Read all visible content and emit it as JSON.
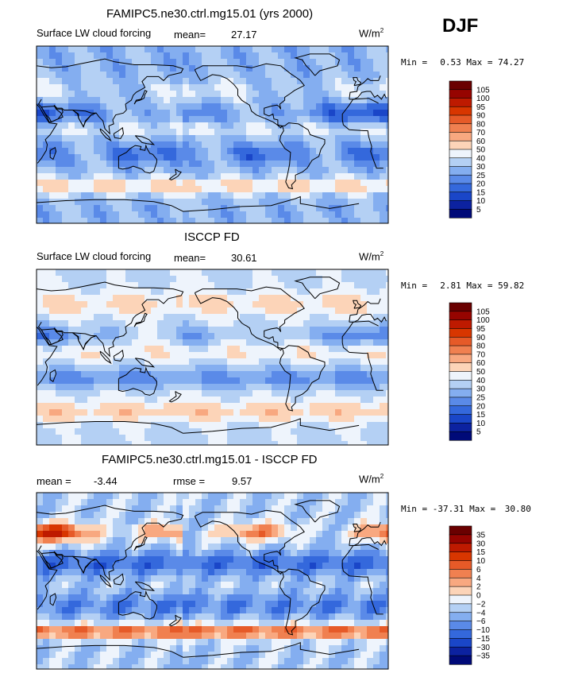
{
  "season": "DJF",
  "units_base": "W/m",
  "units_exp": "2",
  "min_label": "Min =",
  "max_label": "Max =",
  "panels": [
    {
      "title": "FAMIPC5.ne30.ctrl.mg15.01 (yrs 2000)",
      "subtitle": "Surface LW cloud forcing",
      "mean_label": "mean=",
      "mean": "27.17",
      "min": "0.53",
      "max": "74.27",
      "mode": "abs"
    },
    {
      "title": "ISCCP FD",
      "subtitle": "Surface LW cloud forcing",
      "mean_label": "mean=",
      "mean": "30.61",
      "min": "2.81",
      "max": "59.82",
      "mode": "obs"
    },
    {
      "title": "FAMIPC5.ne30.ctrl.mg15.01 - ISCCP FD",
      "mean_label": "mean =",
      "mean": "-3.44",
      "rmse_label": "rmse =",
      "rmse": "9.57",
      "min": "-37.31",
      "max": "30.80",
      "mode": "diff"
    }
  ],
  "chart_data": [
    {
      "type": "heatmap",
      "title": "FAMIPC5.ne30.ctrl.mg15.01 (yrs 2000)",
      "subtitle": "Surface LW cloud forcing",
      "units": "W/m^2",
      "mean": 27.17,
      "min": 0.53,
      "max": 74.27,
      "colorbar_levels": [
        "105",
        "100",
        "95",
        "90",
        "80",
        "70",
        "60",
        "50",
        "40",
        "30",
        "25",
        "20",
        "15",
        "10",
        "5"
      ],
      "colorbar_colors": [
        "#6a0000",
        "#960400",
        "#be1a00",
        "#d83600",
        "#e65a28",
        "#f08050",
        "#f8a880",
        "#fcd4b8",
        "#eef4fc",
        "#b4d0f4",
        "#84aef0",
        "#5a8ae8",
        "#3468dc",
        "#1a46c8",
        "#0c22a0",
        "#000a78"
      ]
    },
    {
      "type": "heatmap",
      "title": "ISCCP FD",
      "subtitle": "Surface LW cloud forcing",
      "units": "W/m^2",
      "mean": 30.61,
      "min": 2.81,
      "max": 59.82,
      "colorbar_levels": [
        "105",
        "100",
        "95",
        "90",
        "80",
        "70",
        "60",
        "50",
        "40",
        "30",
        "25",
        "20",
        "15",
        "10",
        "5"
      ],
      "colorbar_colors": [
        "#6a0000",
        "#960400",
        "#be1a00",
        "#d83600",
        "#e65a28",
        "#f08050",
        "#f8a880",
        "#fcd4b8",
        "#eef4fc",
        "#b4d0f4",
        "#84aef0",
        "#5a8ae8",
        "#3468dc",
        "#1a46c8",
        "#0c22a0",
        "#000a78"
      ]
    },
    {
      "type": "heatmap",
      "title": "FAMIPC5.ne30.ctrl.mg15.01 - ISCCP FD",
      "units": "W/m^2",
      "mean": -3.44,
      "rmse": 9.57,
      "min": -37.31,
      "max": 30.8,
      "colorbar_levels": [
        "35",
        "30",
        "15",
        "10",
        "6",
        "4",
        "2",
        "0",
        "−2",
        "−4",
        "−6",
        "−10",
        "−15",
        "−30",
        "−35"
      ],
      "colorbar_colors": [
        "#6a0000",
        "#960400",
        "#be1a00",
        "#d83600",
        "#e65a28",
        "#f08050",
        "#f8a880",
        "#fcd4b8",
        "#eef4fc",
        "#b4d0f4",
        "#84aef0",
        "#5a8ae8",
        "#3468dc",
        "#1a46c8",
        "#0c22a0",
        "#000a78"
      ]
    }
  ]
}
